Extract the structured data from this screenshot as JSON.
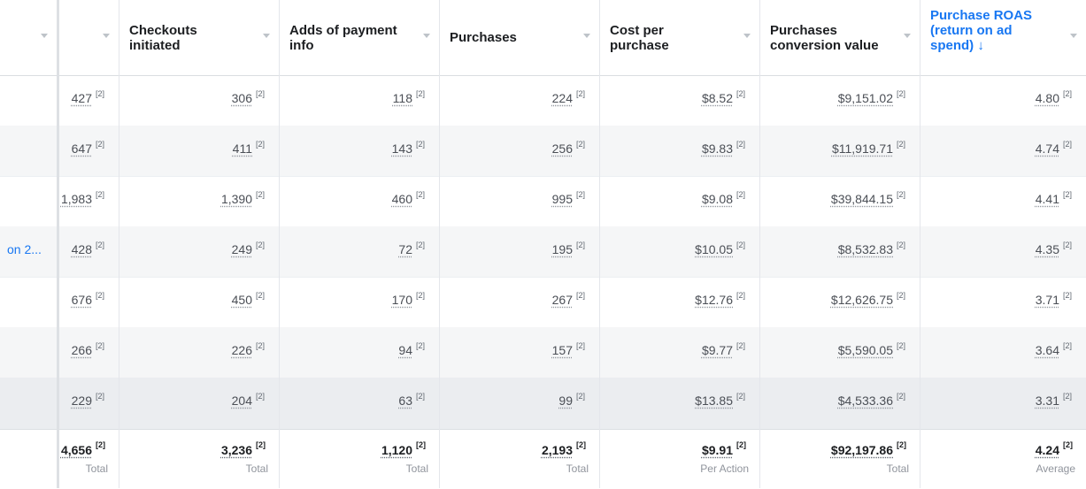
{
  "header": {
    "col1": "",
    "col2": "",
    "checkouts": [
      "Checkouts",
      "initiated"
    ],
    "payment": [
      "Adds of payment",
      "info"
    ],
    "purchases": [
      "Purchases"
    ],
    "cost": [
      "Cost per",
      "purchase"
    ],
    "conv": [
      "Purchases",
      "conversion value"
    ],
    "roas": [
      "Purchase ROAS",
      "(return on ad",
      "spend) ↓"
    ]
  },
  "rows": [
    {
      "name": "",
      "c2": "427",
      "checkouts": "306",
      "payment": "118",
      "purchases": "224",
      "cost": "$8.52",
      "conv": "$9,151.02",
      "roas": "4.80"
    },
    {
      "name": "",
      "c2": "647",
      "checkouts": "411",
      "payment": "143",
      "purchases": "256",
      "cost": "$9.83",
      "conv": "$11,919.71",
      "roas": "4.74"
    },
    {
      "name": "",
      "c2": "1,983",
      "checkouts": "1,390",
      "payment": "460",
      "purchases": "995",
      "cost": "$9.08",
      "conv": "$39,844.15",
      "roas": "4.41"
    },
    {
      "name": "on 2...",
      "c2": "428",
      "checkouts": "249",
      "payment": "72",
      "purchases": "195",
      "cost": "$10.05",
      "conv": "$8,532.83",
      "roas": "4.35"
    },
    {
      "name": "",
      "c2": "676",
      "checkouts": "450",
      "payment": "170",
      "purchases": "267",
      "cost": "$12.76",
      "conv": "$12,626.75",
      "roas": "3.71"
    },
    {
      "name": "",
      "c2": "266",
      "checkouts": "226",
      "payment": "94",
      "purchases": "157",
      "cost": "$9.77",
      "conv": "$5,590.05",
      "roas": "3.64"
    },
    {
      "name": "",
      "c2": "229",
      "checkouts": "204",
      "payment": "63",
      "purchases": "99",
      "cost": "$13.85",
      "conv": "$4,533.36",
      "roas": "3.31"
    }
  ],
  "footnote": "[2]",
  "totals": {
    "c2": {
      "value": "4,656",
      "label": "Total"
    },
    "checkouts": {
      "value": "3,236",
      "label": "Total"
    },
    "payment": {
      "value": "1,120",
      "label": "Total"
    },
    "purchases": {
      "value": "2,193",
      "label": "Total"
    },
    "cost": {
      "value": "$9.91",
      "label": "Per Action"
    },
    "conv": {
      "value": "$92,197.86",
      "label": "Total"
    },
    "roas": {
      "value": "4.24",
      "label": "Average"
    }
  }
}
